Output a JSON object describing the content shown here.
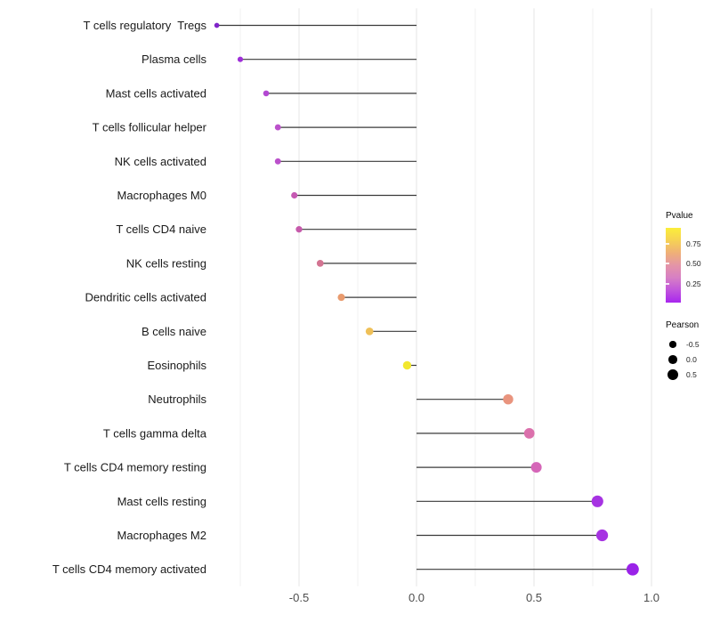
{
  "chart_data": {
    "type": "scatter",
    "subtype": "lollipop",
    "orientation": "horizontal",
    "title": "",
    "xlabel": "",
    "ylabel": "",
    "categories": [
      "T cells regulatory  Tregs",
      "Plasma cells",
      "Mast cells activated",
      "T cells follicular helper",
      "NK cells activated",
      "Macrophages M0",
      "T cells CD4 naive",
      "NK cells resting",
      "Dendritic cells activated",
      "B cells naive",
      "Eosinophils",
      "Neutrophils",
      "T cells gamma delta",
      "T cells CD4 memory resting",
      "Mast cells resting",
      "Macrophages M2",
      "T cells CD4 memory activated"
    ],
    "series": [
      {
        "name": "Pearson",
        "values": [
          -0.85,
          -0.75,
          -0.64,
          -0.59,
          -0.59,
          -0.52,
          -0.5,
          -0.41,
          -0.32,
          -0.2,
          -0.04,
          0.39,
          0.48,
          0.51,
          0.77,
          0.79,
          0.92
        ]
      }
    ],
    "point_colors": [
      "#7F24C9",
      "#9E2ED8",
      "#B348D2",
      "#BB51CB",
      "#BB51CB",
      "#C558B2",
      "#C65AAB",
      "#D37492",
      "#E99B6E",
      "#EFC058",
      "#F2E72E",
      "#E9947E",
      "#DB70AC",
      "#D566B8",
      "#A633E2",
      "#A633E2",
      "#9A23E8"
    ],
    "baseline": 0,
    "xlim": [
      -0.87,
      1.04
    ],
    "x_ticks": [
      {
        "label": "-0.5",
        "value": -0.5
      },
      {
        "label": "0.0",
        "value": 0.0
      },
      {
        "label": "0.5",
        "value": 0.5
      },
      {
        "label": "1.0",
        "value": 1.0
      }
    ],
    "x_minor_gridlines": [
      -0.75,
      -0.25,
      0.25,
      0.75
    ],
    "grid": "vertical-only",
    "legend_position": "right"
  },
  "legend": {
    "pvalue": {
      "title": "Pvalue",
      "tick_labels": [
        "0.75",
        "0.50",
        "0.25"
      ],
      "gradient_stops": [
        "#FBEE3A",
        "#F6D254",
        "#EFB077",
        "#E495A7",
        "#D77FC4",
        "#C155DC",
        "#A826EE"
      ]
    },
    "pearson": {
      "title": "Pearson",
      "items": [
        {
          "label": "-0.5",
          "value": -0.5
        },
        {
          "label": "0.0",
          "value": 0.0
        },
        {
          "label": "0.5",
          "value": 0.5
        }
      ]
    }
  },
  "colors": {
    "stem": "#3a3a3a",
    "major_grid": "#e4e4e4",
    "minor_grid": "#f1f1f1",
    "axis_text": "#4d4d4d",
    "category_text": "#1a1a1a",
    "legend_dot": "#000000"
  }
}
